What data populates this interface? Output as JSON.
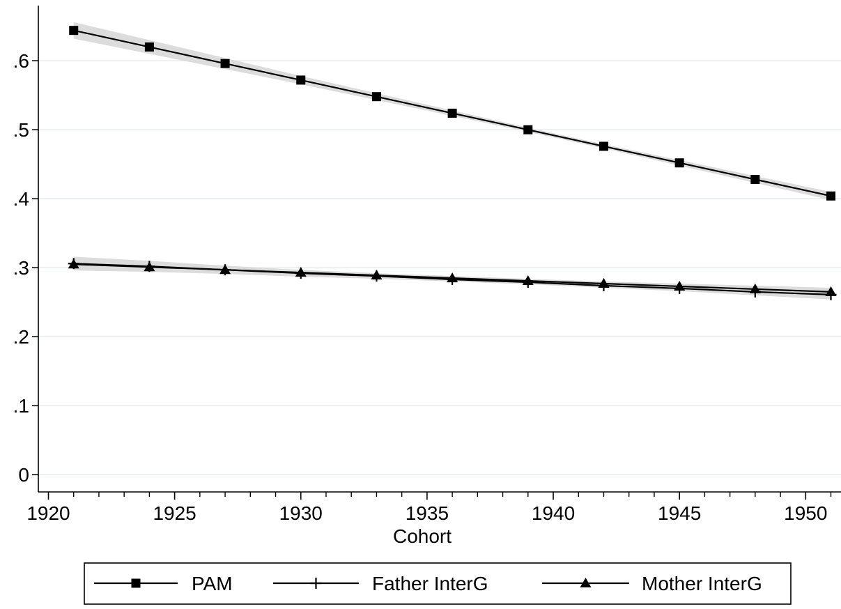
{
  "chart_data": {
    "type": "line",
    "title": "",
    "xlabel": "Cohort",
    "ylabel": "",
    "xlim": [
      1919.6,
      1951.4
    ],
    "ylim": [
      -0.025,
      0.68
    ],
    "x_ticks": [
      1920,
      1925,
      1930,
      1935,
      1940,
      1945,
      1950
    ],
    "x_tick_labels": [
      "1920",
      "1925",
      "1930",
      "1935",
      "1940",
      "1945",
      "1950"
    ],
    "x_minor_ticks": [
      1921,
      1922,
      1923,
      1924,
      1926,
      1927,
      1928,
      1929,
      1931,
      1932,
      1933,
      1934,
      1936,
      1937,
      1938,
      1939,
      1941,
      1942,
      1943,
      1944,
      1946,
      1947,
      1948,
      1949,
      1951
    ],
    "y_ticks": [
      0,
      0.1,
      0.2,
      0.3,
      0.4,
      0.5,
      0.6
    ],
    "y_tick_labels": [
      "0",
      ".1",
      ".2",
      ".3",
      ".4",
      ".5",
      ".6"
    ],
    "grid": "horizontal",
    "legend_position": "bottom",
    "x": [
      1921,
      1924,
      1927,
      1930,
      1933,
      1936,
      1939,
      1942,
      1945,
      1948,
      1951
    ],
    "series": [
      {
        "name": "PAM",
        "marker": "square",
        "color": "#000000",
        "values": [
          0.644,
          0.62,
          0.596,
          0.572,
          0.548,
          0.524,
          0.5,
          0.476,
          0.452,
          0.428,
          0.404
        ],
        "ci_lower": [
          0.632,
          0.61,
          0.588,
          0.566,
          0.543,
          0.52,
          0.497,
          0.473,
          0.448,
          0.423,
          0.398
        ],
        "ci_upper": [
          0.656,
          0.63,
          0.604,
          0.578,
          0.553,
          0.528,
          0.503,
          0.479,
          0.456,
          0.433,
          0.41
        ]
      },
      {
        "name": "Father InterG",
        "marker": "plus",
        "color": "#000000",
        "values": [
          0.306,
          0.302,
          0.297,
          0.292,
          0.288,
          0.283,
          0.279,
          0.274,
          0.27,
          0.265,
          0.261
        ],
        "ci_lower": [
          0.296,
          0.294,
          0.291,
          0.287,
          0.284,
          0.28,
          0.276,
          0.271,
          0.266,
          0.26,
          0.254
        ],
        "ci_upper": [
          0.316,
          0.31,
          0.303,
          0.297,
          0.292,
          0.286,
          0.282,
          0.277,
          0.274,
          0.27,
          0.268
        ]
      },
      {
        "name": "Mother InterG",
        "marker": "triangle",
        "color": "#000000",
        "values": [
          0.305,
          0.301,
          0.297,
          0.293,
          0.289,
          0.285,
          0.281,
          0.277,
          0.273,
          0.269,
          0.265
        ],
        "ci_lower": [
          0.298,
          0.295,
          0.292,
          0.289,
          0.286,
          0.282,
          0.278,
          0.274,
          0.269,
          0.264,
          0.259
        ],
        "ci_upper": [
          0.312,
          0.307,
          0.302,
          0.297,
          0.292,
          0.288,
          0.284,
          0.28,
          0.277,
          0.274,
          0.271
        ]
      }
    ],
    "colors": {
      "line": "#000000",
      "ci_band": "#dcdcdc",
      "grid": "#e6ecee",
      "axis": "#000000"
    }
  }
}
